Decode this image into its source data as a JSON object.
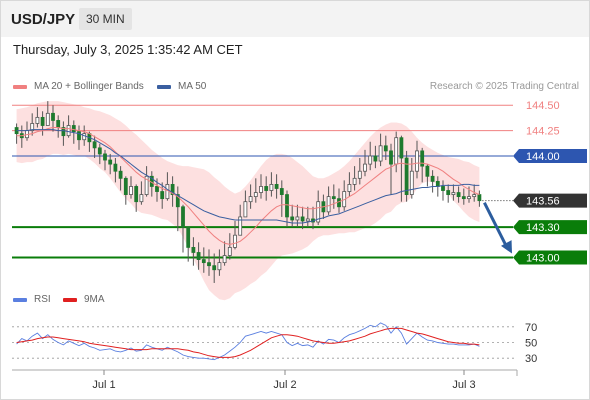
{
  "header": {
    "symbol": "USD/JPY",
    "interval": "30 MIN",
    "datetime": "Thursday, July 3, 2025 1:35:42 AM CET",
    "credit": "Research © 2025 Trading Central"
  },
  "legend": {
    "ma20": "MA 20 + Bollinger Bands",
    "ma50": "MA 50",
    "rsi": "RSI",
    "ma9": "9MA"
  },
  "colors": {
    "ma20": "#f08080",
    "ma50": "#3a5fa0",
    "band_fill": "#fde0e0",
    "resistance": "#f08080",
    "blue_level": "#2d56b0",
    "support": "#0a7d0a",
    "current": "#333333",
    "rsi": "#5a7fe0",
    "rsi_ma": "#e02020",
    "arrow": "#2c5d9e"
  },
  "chart_data": [
    {
      "type": "candlestick",
      "x_ticks": [
        "Jul 1",
        "Jul 2",
        "Jul 3"
      ],
      "ylim": [
        142.72,
        144.62
      ],
      "price_levels": [
        {
          "label": "144.50",
          "value": 144.5,
          "kind": "resistance"
        },
        {
          "label": "144.25",
          "value": 144.25,
          "kind": "resistance"
        },
        {
          "label": "144.00",
          "value": 144.0,
          "kind": "pivot"
        },
        {
          "label": "143.56",
          "value": 143.56,
          "kind": "current"
        },
        {
          "label": "143.30",
          "value": 143.3,
          "kind": "support"
        },
        {
          "label": "143.00",
          "value": 143.0,
          "kind": "support"
        }
      ],
      "close": [
        144.22,
        144.18,
        144.25,
        144.32,
        144.38,
        144.3,
        144.42,
        144.35,
        144.28,
        144.2,
        144.3,
        144.24,
        144.16,
        144.22,
        144.14,
        144.08,
        144.02,
        143.96,
        143.92,
        143.85,
        143.78,
        143.62,
        143.7,
        143.55,
        143.62,
        143.8,
        143.7,
        143.65,
        143.58,
        143.72,
        143.62,
        143.5,
        143.3,
        143.1,
        143.05,
        142.98,
        142.95,
        142.92,
        142.88,
        142.95,
        143.02,
        143.1,
        143.22,
        143.4,
        143.55,
        143.6,
        143.64,
        143.7,
        143.66,
        143.72,
        143.68,
        143.62,
        143.4,
        143.37,
        143.4,
        143.36,
        143.38,
        143.35,
        143.55,
        143.45,
        143.6,
        143.58,
        143.5,
        143.65,
        143.72,
        143.78,
        143.85,
        143.92,
        144.0,
        143.95,
        144.1,
        144.05,
        143.92,
        144.18,
        143.98,
        143.62,
        143.85,
        144.05,
        143.9,
        143.8,
        143.75,
        143.7,
        143.66,
        143.62,
        143.64,
        143.6,
        143.58,
        143.6,
        143.62,
        143.56
      ],
      "high": [
        144.32,
        144.3,
        144.34,
        144.42,
        144.48,
        144.44,
        144.54,
        144.5,
        144.4,
        144.34,
        144.4,
        144.35,
        144.3,
        144.3,
        144.24,
        144.2,
        144.12,
        144.06,
        144.02,
        143.98,
        143.9,
        143.8,
        143.8,
        143.72,
        143.75,
        143.9,
        143.85,
        143.78,
        143.74,
        143.84,
        143.8,
        143.7,
        143.52,
        143.3,
        143.2,
        143.15,
        143.1,
        143.08,
        143.04,
        143.08,
        143.16,
        143.24,
        143.36,
        143.52,
        143.66,
        143.72,
        143.78,
        143.82,
        143.8,
        143.84,
        143.82,
        143.76,
        143.66,
        143.52,
        143.52,
        143.5,
        143.5,
        143.5,
        143.66,
        143.62,
        143.7,
        143.72,
        143.68,
        143.76,
        143.84,
        143.9,
        143.98,
        144.06,
        144.14,
        144.1,
        144.22,
        144.2,
        144.12,
        144.24,
        144.2,
        144.05,
        143.98,
        144.15,
        144.08,
        143.92,
        143.86,
        143.8,
        143.76,
        143.72,
        143.72,
        143.7,
        143.68,
        143.7,
        143.72,
        143.66
      ],
      "low": [
        144.12,
        144.08,
        144.15,
        144.2,
        144.28,
        144.2,
        144.3,
        144.24,
        144.18,
        144.1,
        144.18,
        144.12,
        144.06,
        144.1,
        144.04,
        143.98,
        143.92,
        143.86,
        143.82,
        143.74,
        143.66,
        143.52,
        143.58,
        143.45,
        143.52,
        143.6,
        143.6,
        143.55,
        143.48,
        143.56,
        143.5,
        143.26,
        143.05,
        142.96,
        142.92,
        142.88,
        142.85,
        142.82,
        142.75,
        142.82,
        142.92,
        142.98,
        143.08,
        143.22,
        143.4,
        143.48,
        143.54,
        143.58,
        143.56,
        143.6,
        143.58,
        143.4,
        143.3,
        143.3,
        143.3,
        143.28,
        143.3,
        143.28,
        143.32,
        143.38,
        143.42,
        143.48,
        143.44,
        143.46,
        143.6,
        143.66,
        143.72,
        143.8,
        143.86,
        143.88,
        143.9,
        143.96,
        143.62,
        143.84,
        143.55,
        143.55,
        143.58,
        143.78,
        143.74,
        143.7,
        143.64,
        143.6,
        143.56,
        143.54,
        143.56,
        143.54,
        143.52,
        143.54,
        143.55,
        143.5
      ],
      "ma20": [
        144.2,
        144.2,
        144.21,
        144.22,
        144.24,
        144.25,
        144.27,
        144.28,
        144.28,
        144.27,
        144.27,
        144.26,
        144.25,
        144.24,
        144.22,
        144.19,
        144.16,
        144.13,
        144.09,
        144.04,
        143.99,
        143.94,
        143.89,
        143.84,
        143.8,
        143.77,
        143.74,
        143.71,
        143.68,
        143.66,
        143.63,
        143.6,
        143.55,
        143.5,
        143.44,
        143.38,
        143.32,
        143.26,
        143.21,
        143.17,
        143.14,
        143.13,
        143.14,
        143.16,
        143.2,
        143.25,
        143.3,
        143.36,
        143.41,
        143.46,
        143.5,
        143.52,
        143.52,
        143.51,
        143.5,
        143.49,
        143.48,
        143.48,
        143.49,
        143.5,
        143.51,
        143.53,
        143.55,
        143.57,
        143.6,
        143.63,
        143.67,
        143.71,
        143.75,
        143.79,
        143.83,
        143.87,
        143.89,
        143.92,
        143.93,
        143.92,
        143.92,
        143.93,
        143.93,
        143.92,
        143.9,
        143.88,
        143.85,
        143.81,
        143.77,
        143.74,
        143.7,
        143.67,
        143.64,
        143.62
      ],
      "ma50": [
        144.25,
        144.25,
        144.25,
        144.26,
        144.26,
        144.26,
        144.26,
        144.26,
        144.25,
        144.25,
        144.24,
        144.23,
        144.22,
        144.2,
        144.18,
        144.16,
        144.13,
        144.1,
        144.07,
        144.03,
        144.0,
        143.96,
        143.92,
        143.88,
        143.84,
        143.81,
        143.78,
        143.74,
        143.71,
        143.67,
        143.64,
        143.61,
        143.58,
        143.55,
        143.52,
        143.49,
        143.46,
        143.44,
        143.42,
        143.4,
        143.39,
        143.38,
        143.37,
        143.37,
        143.37,
        143.37,
        143.37,
        143.37,
        143.37,
        143.37,
        143.37,
        143.36,
        143.35,
        143.34,
        143.34,
        143.34,
        143.35,
        143.36,
        143.38,
        143.39,
        143.41,
        143.42,
        143.43,
        143.45,
        143.47,
        143.49,
        143.51,
        143.53,
        143.55,
        143.57,
        143.59,
        143.61,
        143.62,
        143.63,
        143.65,
        143.66,
        143.67,
        143.68,
        143.69,
        143.69,
        143.7,
        143.7,
        143.71,
        143.71,
        143.71,
        143.71,
        143.72,
        143.72,
        143.71,
        143.71
      ],
      "bb_upper": [
        144.46,
        144.47,
        144.48,
        144.5,
        144.52,
        144.53,
        144.54,
        144.54,
        144.54,
        144.53,
        144.52,
        144.51,
        144.5,
        144.48,
        144.47,
        144.45,
        144.44,
        144.42,
        144.4,
        144.37,
        144.34,
        144.3,
        144.25,
        144.21,
        144.16,
        144.11,
        144.06,
        144.02,
        143.98,
        143.95,
        143.93,
        143.91,
        143.9,
        143.9,
        143.89,
        143.88,
        143.87,
        143.84,
        143.79,
        143.75,
        143.7,
        143.66,
        143.63,
        143.65,
        143.7,
        143.76,
        143.83,
        143.9,
        143.96,
        144.0,
        144.02,
        144.02,
        144.01,
        143.98,
        143.94,
        143.9,
        143.85,
        143.8,
        143.78,
        143.78,
        143.8,
        143.83,
        143.86,
        143.9,
        143.95,
        144.01,
        144.07,
        144.13,
        144.19,
        144.24,
        144.28,
        144.31,
        144.33,
        144.33,
        144.32,
        144.29,
        144.24,
        144.18,
        144.13,
        144.09,
        144.06,
        144.03,
        144.01,
        143.99,
        143.98,
        143.97,
        143.95,
        143.94,
        143.91,
        143.89
      ],
      "bb_lower": [
        143.94,
        143.93,
        143.94,
        143.94,
        143.96,
        143.97,
        144.0,
        144.02,
        144.02,
        144.01,
        144.02,
        144.01,
        144.0,
        144.0,
        143.97,
        143.93,
        143.88,
        143.84,
        143.78,
        143.71,
        143.64,
        143.58,
        143.53,
        143.47,
        143.44,
        143.43,
        143.42,
        143.4,
        143.38,
        143.37,
        143.33,
        143.29,
        143.2,
        143.1,
        142.99,
        142.88,
        142.77,
        142.68,
        142.63,
        142.59,
        142.58,
        142.6,
        142.65,
        142.67,
        142.7,
        142.74,
        142.77,
        142.82,
        142.86,
        142.92,
        142.98,
        143.02,
        143.03,
        143.04,
        143.06,
        143.08,
        143.11,
        143.16,
        143.2,
        143.22,
        143.22,
        143.23,
        143.24,
        143.24,
        143.25,
        143.25,
        143.27,
        143.29,
        143.31,
        143.34,
        143.38,
        143.43,
        143.45,
        143.51,
        143.54,
        143.55,
        143.6,
        143.68,
        143.73,
        143.75,
        143.74,
        143.73,
        143.69,
        143.63,
        143.56,
        143.51,
        143.45,
        143.4,
        143.37,
        143.35
      ],
      "forecast_arrow": {
        "from": 143.56,
        "to": 143.0
      }
    },
    {
      "type": "line",
      "ticks": [
        "70",
        "50",
        "30"
      ],
      "ylim": [
        20,
        80
      ],
      "rsi": [
        48,
        55,
        52,
        58,
        62,
        55,
        60,
        54,
        50,
        47,
        52,
        49,
        46,
        49,
        45,
        43,
        40,
        41,
        42,
        39,
        38,
        40,
        43,
        39,
        40,
        47,
        44,
        42,
        40,
        44,
        41,
        38,
        34,
        32,
        31,
        30,
        30,
        29,
        28,
        31,
        34,
        39,
        44,
        50,
        58,
        60,
        62,
        64,
        62,
        64,
        62,
        60,
        50,
        46,
        49,
        46,
        47,
        44,
        52,
        48,
        54,
        53,
        50,
        56,
        60,
        62,
        65,
        68,
        72,
        70,
        75,
        72,
        62,
        70,
        62,
        48,
        55,
        62,
        57,
        53,
        52,
        50,
        49,
        48,
        48,
        47,
        47,
        47,
        48,
        45
      ],
      "ma9": [
        50,
        51,
        52,
        53,
        55,
        56,
        57,
        57,
        56,
        55,
        54,
        53,
        52,
        51,
        49,
        48,
        47,
        46,
        45,
        44,
        43,
        42,
        41,
        41,
        41,
        41,
        42,
        42,
        42,
        42,
        42,
        42,
        41,
        40,
        38,
        37,
        35,
        33,
        32,
        31,
        31,
        31,
        32,
        34,
        37,
        40,
        44,
        48,
        52,
        56,
        58,
        60,
        60,
        59,
        58,
        56,
        54,
        52,
        51,
        50,
        49,
        49,
        50,
        51,
        52,
        54,
        56,
        58,
        61,
        63,
        65,
        67,
        68,
        68,
        68,
        66,
        64,
        62,
        61,
        59,
        57,
        55,
        53,
        51,
        50,
        49,
        49,
        48,
        48,
        47
      ]
    }
  ]
}
